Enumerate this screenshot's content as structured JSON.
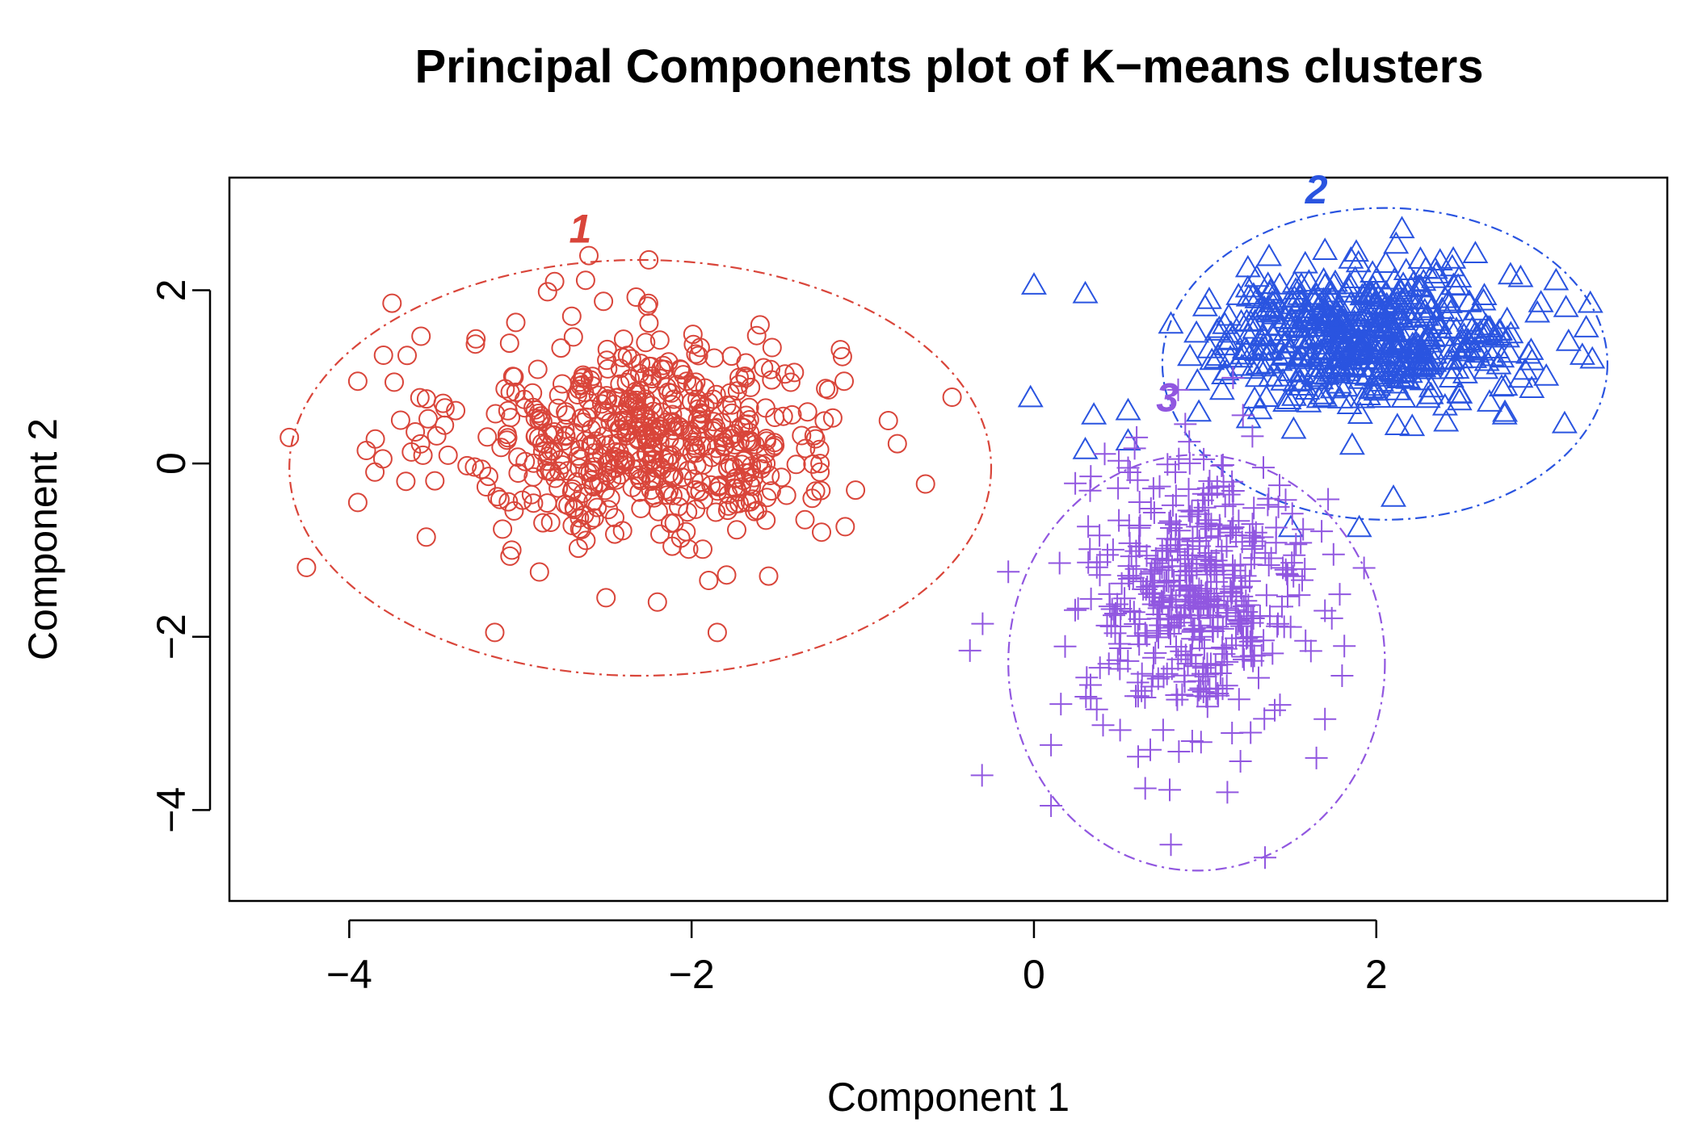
{
  "chart_data": {
    "type": "scatter",
    "title": "Principal Components plot of K−means clusters",
    "xlabel": "Component 1",
    "ylabel": "Component 2",
    "xlim": [
      -4.7,
      3.7
    ],
    "ylim": [
      -5.05,
      3.3
    ],
    "x_ticks": [
      -4,
      -2,
      0,
      2
    ],
    "x_tick_labels": [
      "−4",
      "−2",
      "0",
      "2"
    ],
    "y_ticks": [
      -4,
      -2,
      0,
      2
    ],
    "y_tick_labels": [
      "−4",
      "−2",
      "0",
      "2"
    ],
    "grid": false,
    "legend": "none",
    "clusters": [
      {
        "label": "1",
        "marker": "circle",
        "color": "#d9453a",
        "center": [
          -2.25,
          0.3
        ],
        "spread": [
          0.55,
          0.6
        ],
        "n": 550,
        "ellipse": {
          "cx": -2.3,
          "cy": -0.05,
          "rx": 2.05,
          "ry": 2.4
        },
        "label_pos": [
          -2.65,
          2.55
        ],
        "sample_points": [
          [
            -2.6,
            2.4
          ],
          [
            -2.25,
            2.35
          ],
          [
            -2.8,
            2.1
          ],
          [
            -3.75,
            1.85
          ],
          [
            -2.7,
            1.7
          ],
          [
            -3.8,
            1.25
          ],
          [
            -3.95,
            0.95
          ],
          [
            -3.7,
            0.5
          ],
          [
            -4.35,
            0.3
          ],
          [
            -3.9,
            0.15
          ],
          [
            -3.85,
            -0.1
          ],
          [
            -3.95,
            -0.45
          ],
          [
            -3.5,
            -0.2
          ],
          [
            -4.25,
            -1.2
          ],
          [
            -3.55,
            -0.85
          ],
          [
            -3.15,
            -1.95
          ],
          [
            -3.05,
            -1.0
          ],
          [
            -2.5,
            -1.55
          ],
          [
            -2.2,
            -1.6
          ],
          [
            -1.85,
            -1.95
          ],
          [
            -1.25,
            -0.1
          ],
          [
            -1.25,
            0.0
          ],
          [
            -1.2,
            0.85
          ],
          [
            -1.4,
            1.05
          ],
          [
            -1.6,
            1.6
          ],
          [
            -1.55,
            -1.3
          ],
          [
            -1.9,
            -1.35
          ]
        ]
      },
      {
        "label": "2",
        "marker": "triangle",
        "color": "#2a54e0",
        "center": [
          1.95,
          1.45
        ],
        "spread": [
          0.45,
          0.38
        ],
        "n": 550,
        "ellipse": {
          "cx": 2.05,
          "cy": 1.15,
          "rx": 1.3,
          "ry": 1.8
        },
        "label_pos": [
          1.65,
          3.0
        ],
        "sample_points": [
          [
            0.0,
            2.05
          ],
          [
            0.3,
            1.95
          ],
          [
            -0.02,
            0.75
          ],
          [
            0.35,
            0.55
          ],
          [
            0.55,
            0.6
          ],
          [
            0.3,
            0.15
          ],
          [
            0.55,
            0.25
          ],
          [
            2.15,
            2.7
          ],
          [
            3.05,
            2.1
          ],
          [
            2.45,
            2.35
          ],
          [
            3.1,
            0.45
          ],
          [
            2.75,
            0.55
          ],
          [
            2.1,
            -0.4
          ],
          [
            1.9,
            -0.75
          ],
          [
            1.5,
            -0.75
          ],
          [
            1.7,
            2.45
          ],
          [
            1.25,
            2.25
          ],
          [
            1.0,
            1.8
          ],
          [
            0.8,
            1.6
          ]
        ]
      },
      {
        "label": "3",
        "marker": "plus",
        "color": "#9157e0",
        "center": [
          0.95,
          -1.5
        ],
        "spread": [
          0.32,
          0.75
        ],
        "n": 450,
        "ellipse": {
          "cx": 0.95,
          "cy": -2.3,
          "rx": 1.1,
          "ry": 2.4
        },
        "label_pos": [
          0.78,
          0.6
        ],
        "sample_points": [
          [
            -0.3,
            -1.85
          ],
          [
            0.1,
            -3.25
          ],
          [
            0.1,
            -3.95
          ],
          [
            0.8,
            -4.4
          ],
          [
            1.35,
            -4.55
          ],
          [
            0.65,
            -3.75
          ],
          [
            1.65,
            -3.4
          ],
          [
            1.7,
            -2.95
          ],
          [
            1.8,
            -2.45
          ],
          [
            1.7,
            -1.7
          ],
          [
            1.75,
            -1.05
          ],
          [
            0.6,
            0.3
          ],
          [
            0.55,
            -0.05
          ],
          [
            0.15,
            -1.15
          ],
          [
            -0.15,
            -1.25
          ]
        ]
      }
    ]
  }
}
